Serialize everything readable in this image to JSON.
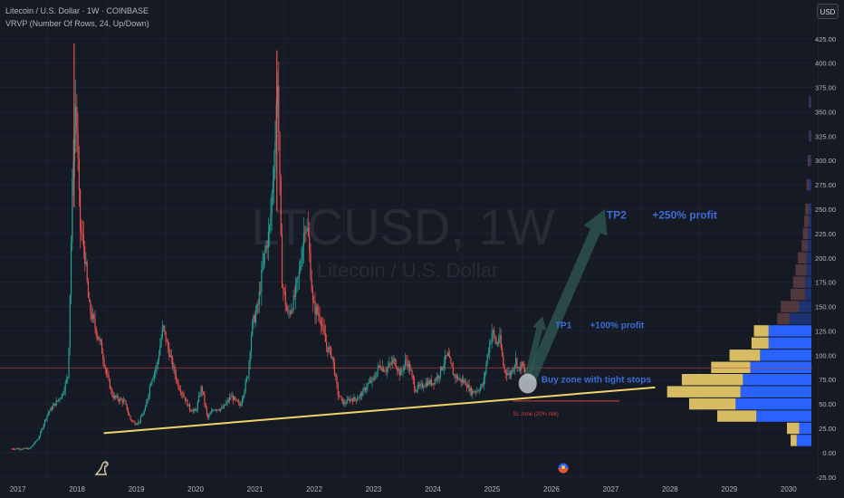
{
  "header": {
    "symbol_line": "Litecoin / U.S. Dollar · 1W · COINBASE",
    "indicator_line": "VRVP (Number Of Rows, 24, Up/Down)",
    "currency_button": "USD"
  },
  "watermark": {
    "ticker": "LTCUSD, 1W",
    "name": "Litecoin / U.S. Dollar"
  },
  "colors": {
    "background": "#161a25",
    "grid": "#1f2330",
    "axis_text": "#b2b5be",
    "up_candle": "#26a69a",
    "down_candle": "#ef5350",
    "trendline": "#f0d36b",
    "arrow": "#2f5a53",
    "annotation_blue": "#3d6cd6",
    "sl_red": "#d2413f",
    "vp_up": "#2962ff",
    "vp_down": "#d7bc64"
  },
  "chart_data": {
    "type": "candlestick",
    "x_axis": {
      "ticks": [
        "2017",
        "2018",
        "2019",
        "2020",
        "2021",
        "2022",
        "2023",
        "2024",
        "2025",
        "2026",
        "2027",
        "2028",
        "2029",
        "2030"
      ],
      "range": [
        2016.7,
        2030.4
      ]
    },
    "y_axis": {
      "ticks": [
        "425.00",
        "400.00",
        "375.00",
        "350.00",
        "325.00",
        "300.00",
        "275.00",
        "250.00",
        "225.00",
        "200.00",
        "175.00",
        "150.00",
        "125.00",
        "100.00",
        "75.00",
        "50.00",
        "25.00",
        "0.00",
        "-25.00"
      ],
      "range": [
        -28,
        435
      ],
      "unit": "USD"
    },
    "price_path": [
      [
        2016.9,
        4
      ],
      [
        2017.2,
        4
      ],
      [
        2017.35,
        15
      ],
      [
        2017.5,
        40
      ],
      [
        2017.6,
        48
      ],
      [
        2017.75,
        60
      ],
      [
        2017.85,
        80
      ],
      [
        2017.93,
        300
      ],
      [
        2017.98,
        360
      ],
      [
        2018.05,
        230
      ],
      [
        2018.12,
        210
      ],
      [
        2018.2,
        150
      ],
      [
        2018.3,
        130
      ],
      [
        2018.4,
        110
      ],
      [
        2018.5,
        80
      ],
      [
        2018.6,
        58
      ],
      [
        2018.7,
        55
      ],
      [
        2018.8,
        52
      ],
      [
        2018.9,
        34
      ],
      [
        2018.98,
        30
      ],
      [
        2019.05,
        32
      ],
      [
        2019.15,
        45
      ],
      [
        2019.25,
        75
      ],
      [
        2019.35,
        90
      ],
      [
        2019.45,
        130
      ],
      [
        2019.5,
        115
      ],
      [
        2019.6,
        92
      ],
      [
        2019.7,
        70
      ],
      [
        2019.8,
        58
      ],
      [
        2019.9,
        45
      ],
      [
        2020.0,
        42
      ],
      [
        2020.1,
        68
      ],
      [
        2020.2,
        35
      ],
      [
        2020.3,
        45
      ],
      [
        2020.45,
        45
      ],
      [
        2020.6,
        58
      ],
      [
        2020.75,
        48
      ],
      [
        2020.88,
        80
      ],
      [
        2020.95,
        130
      ],
      [
        2021.05,
        150
      ],
      [
        2021.15,
        200
      ],
      [
        2021.25,
        230
      ],
      [
        2021.35,
        330
      ],
      [
        2021.38,
        390
      ],
      [
        2021.45,
        180
      ],
      [
        2021.55,
        140
      ],
      [
        2021.65,
        155
      ],
      [
        2021.75,
        185
      ],
      [
        2021.85,
        240
      ],
      [
        2021.9,
        220
      ],
      [
        2021.98,
        150
      ],
      [
        2022.1,
        140
      ],
      [
        2022.2,
        110
      ],
      [
        2022.3,
        100
      ],
      [
        2022.4,
        60
      ],
      [
        2022.5,
        50
      ],
      [
        2022.6,
        55
      ],
      [
        2022.7,
        55
      ],
      [
        2022.8,
        60
      ],
      [
        2022.9,
        70
      ],
      [
        2023.0,
        75
      ],
      [
        2023.1,
        90
      ],
      [
        2023.2,
        85
      ],
      [
        2023.35,
        95
      ],
      [
        2023.45,
        80
      ],
      [
        2023.55,
        95
      ],
      [
        2023.62,
        85
      ],
      [
        2023.7,
        65
      ],
      [
        2023.8,
        68
      ],
      [
        2023.9,
        72
      ],
      [
        2024.0,
        72
      ],
      [
        2024.1,
        80
      ],
      [
        2024.2,
        95
      ],
      [
        2024.25,
        100
      ],
      [
        2024.35,
        80
      ],
      [
        2024.45,
        75
      ],
      [
        2024.55,
        72
      ],
      [
        2024.65,
        62
      ],
      [
        2024.75,
        64
      ],
      [
        2024.85,
        70
      ],
      [
        2024.92,
        100
      ],
      [
        2025.0,
        125
      ],
      [
        2025.08,
        110
      ],
      [
        2025.12,
        120
      ],
      [
        2025.2,
        85
      ],
      [
        2025.3,
        80
      ],
      [
        2025.4,
        95
      ],
      [
        2025.45,
        85
      ],
      [
        2025.5,
        90
      ],
      [
        2025.55,
        82
      ],
      [
        2025.58,
        85
      ]
    ],
    "peaks": [
      {
        "x": 2017.95,
        "high": 420
      },
      {
        "x": 2021.37,
        "high": 413
      }
    ],
    "current_price": 87,
    "trendline": {
      "from": [
        2018.45,
        20
      ],
      "to": [
        2027.75,
        67
      ]
    },
    "sl_line": {
      "from": [
        2025.35,
        53
      ],
      "to": [
        2027.15,
        53
      ]
    },
    "buy_zone": {
      "x": 2025.6,
      "y": 71
    },
    "arrows": [
      {
        "from": [
          2025.65,
          75
        ],
        "to": [
          2026.9,
          250
        ]
      },
      {
        "from": [
          2025.6,
          78
        ],
        "to": [
          2025.85,
          140
        ]
      }
    ],
    "annotations": [
      {
        "label": "TP2",
        "x": 2026.93,
        "y": 244,
        "size": 12
      },
      {
        "label": "+250% profit",
        "x": 2027.7,
        "y": 244,
        "size": 12
      },
      {
        "label": "TP1",
        "x": 2026.06,
        "y": 131,
        "size": 10
      },
      {
        "label": "+100% profit",
        "x": 2026.65,
        "y": 131,
        "size": 10
      },
      {
        "label": "Buy zone with tight stops",
        "x": 2025.83,
        "y": 75,
        "size": 10
      },
      {
        "label": "SL zone  (20% risk)",
        "x": 2025.35,
        "y": 40,
        "size": 6
      }
    ],
    "volume_profile": [
      {
        "price": 12.5,
        "up": 0.12,
        "down": 0.05
      },
      {
        "price": 25,
        "up": 0.1,
        "down": 0.1
      },
      {
        "price": 37.5,
        "up": 0.45,
        "down": 0.32
      },
      {
        "price": 50,
        "up": 0.62,
        "down": 0.38
      },
      {
        "price": 62.5,
        "up": 0.58,
        "down": 0.6
      },
      {
        "price": 75,
        "up": 0.56,
        "down": 0.5
      },
      {
        "price": 87.5,
        "up": 0.5,
        "down": 0.32
      },
      {
        "price": 100,
        "up": 0.42,
        "down": 0.25
      },
      {
        "price": 112.5,
        "up": 0.35,
        "down": 0.14
      },
      {
        "price": 125,
        "up": 0.35,
        "down": 0.12
      },
      {
        "price": 137.5,
        "up": 0.18,
        "down": 0.1
      },
      {
        "price": 150,
        "up": 0.1,
        "down": 0.15
      },
      {
        "price": 162.5,
        "up": 0.05,
        "down": 0.12
      },
      {
        "price": 175,
        "up": 0.05,
        "down": 0.1
      },
      {
        "price": 187.5,
        "up": 0.04,
        "down": 0.09
      },
      {
        "price": 200,
        "up": 0.04,
        "down": 0.07
      },
      {
        "price": 212.5,
        "up": 0.03,
        "down": 0.05
      },
      {
        "price": 225,
        "up": 0.03,
        "down": 0.04
      },
      {
        "price": 237.5,
        "up": 0.02,
        "down": 0.04
      },
      {
        "price": 250,
        "up": 0.02,
        "down": 0.03
      },
      {
        "price": 275,
        "up": 0.02,
        "down": 0.02
      },
      {
        "price": 300,
        "up": 0.01,
        "down": 0.02
      },
      {
        "price": 325,
        "up": 0.01,
        "down": 0.01
      },
      {
        "price": 360,
        "up": 0.01,
        "down": 0.01
      }
    ]
  }
}
